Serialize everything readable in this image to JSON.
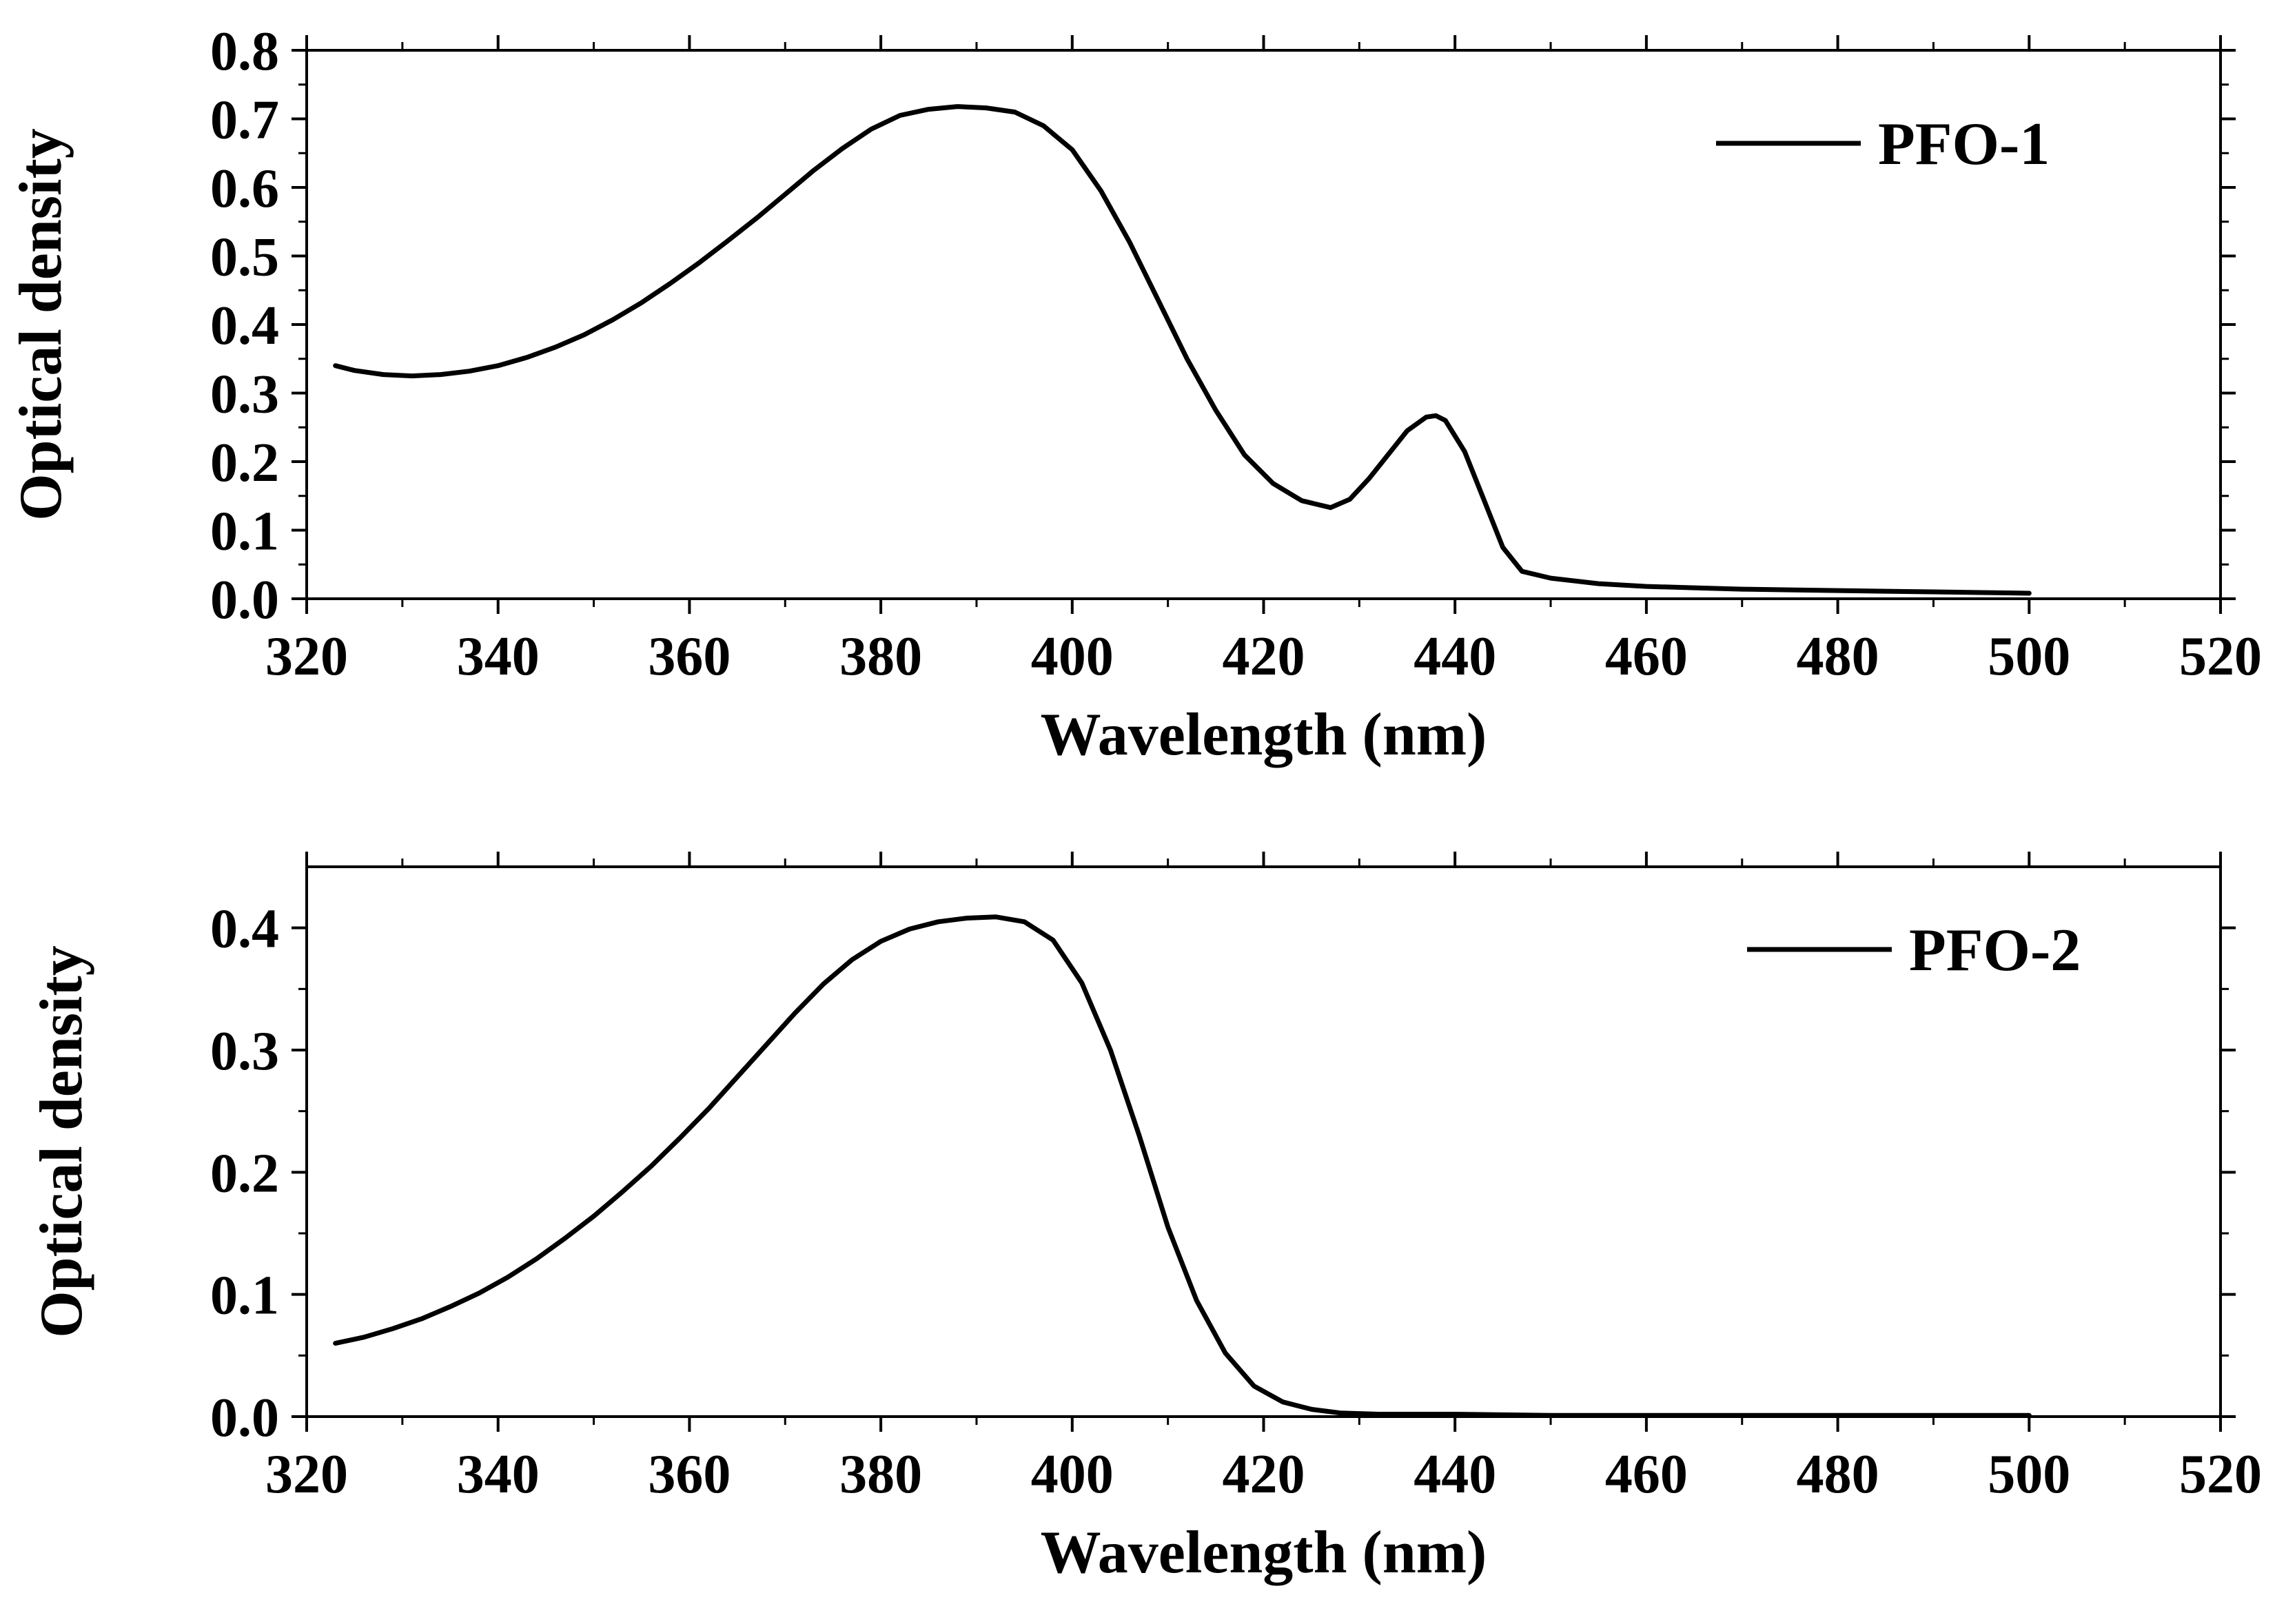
{
  "chart_data": [
    {
      "type": "line",
      "xlabel": "Wavelength (nm)",
      "ylabel": "Optical density",
      "xlim": [
        320,
        520
      ],
      "ylim": [
        0,
        0.8
      ],
      "xticks": [
        320,
        340,
        360,
        380,
        400,
        420,
        440,
        460,
        480,
        500,
        520
      ],
      "xtick_labels": [
        "320",
        "340",
        "360",
        "380",
        "400",
        "420",
        "440",
        "460",
        "480",
        "500",
        "520"
      ],
      "yticks": [
        0,
        0.1,
        0.2,
        0.3,
        0.4,
        0.5,
        0.6,
        0.7,
        0.8
      ],
      "ytick_labels": [
        "0.0",
        "0.1",
        "0.2",
        "0.3",
        "0.4",
        "0.5",
        "0.6",
        "0.7",
        "0.8"
      ],
      "legend_position": "top-right",
      "series": [
        {
          "name": "PFO-1",
          "x": [
            323,
            325,
            328,
            331,
            334,
            337,
            340,
            343,
            346,
            349,
            352,
            355,
            358,
            361,
            364,
            367,
            370,
            373,
            376,
            379,
            382,
            385,
            388,
            391,
            394,
            397,
            400,
            403,
            406,
            409,
            412,
            415,
            418,
            421,
            424,
            427,
            429,
            431,
            433,
            435,
            437,
            438,
            439,
            441,
            443,
            445,
            447,
            450,
            455,
            460,
            465,
            470,
            475,
            480,
            485,
            490,
            495,
            500
          ],
          "y": [
            0.34,
            0.333,
            0.327,
            0.325,
            0.327,
            0.332,
            0.34,
            0.352,
            0.367,
            0.385,
            0.407,
            0.432,
            0.46,
            0.49,
            0.522,
            0.555,
            0.59,
            0.625,
            0.657,
            0.685,
            0.705,
            0.714,
            0.718,
            0.716,
            0.71,
            0.69,
            0.655,
            0.595,
            0.52,
            0.435,
            0.35,
            0.275,
            0.21,
            0.168,
            0.143,
            0.133,
            0.145,
            0.175,
            0.21,
            0.245,
            0.265,
            0.267,
            0.26,
            0.215,
            0.145,
            0.075,
            0.04,
            0.03,
            0.022,
            0.018,
            0.016,
            0.014,
            0.013,
            0.012,
            0.011,
            0.01,
            0.009,
            0.008
          ]
        }
      ]
    },
    {
      "type": "line",
      "xlabel": "Wavelength (nm)",
      "ylabel": "Optical density",
      "xlim": [
        320,
        520
      ],
      "ylim": [
        0,
        0.45
      ],
      "xticks": [
        320,
        340,
        360,
        380,
        400,
        420,
        440,
        460,
        480,
        500,
        520
      ],
      "xtick_labels": [
        "320",
        "340",
        "360",
        "380",
        "400",
        "420",
        "440",
        "460",
        "480",
        "500",
        "520"
      ],
      "yticks": [
        0,
        0.1,
        0.2,
        0.3,
        0.4
      ],
      "ytick_labels": [
        "0.0",
        "0.1",
        "0.2",
        "0.3",
        "0.4"
      ],
      "legend_position": "top-right",
      "series": [
        {
          "name": "PFO-2",
          "x": [
            323,
            326,
            329,
            332,
            335,
            338,
            341,
            344,
            347,
            350,
            353,
            356,
            359,
            362,
            365,
            368,
            371,
            374,
            377,
            380,
            383,
            386,
            389,
            392,
            395,
            398,
            401,
            404,
            407,
            410,
            413,
            416,
            419,
            422,
            425,
            428,
            432,
            440,
            450,
            460,
            470,
            480,
            490,
            500
          ],
          "y": [
            0.06,
            0.065,
            0.072,
            0.08,
            0.09,
            0.101,
            0.114,
            0.129,
            0.146,
            0.164,
            0.184,
            0.205,
            0.228,
            0.252,
            0.278,
            0.304,
            0.33,
            0.354,
            0.374,
            0.389,
            0.399,
            0.405,
            0.408,
            0.409,
            0.405,
            0.39,
            0.355,
            0.3,
            0.23,
            0.155,
            0.095,
            0.052,
            0.025,
            0.012,
            0.006,
            0.003,
            0.002,
            0.002,
            0.001,
            0.001,
            0.001,
            0.001,
            0.001,
            0.001
          ]
        }
      ]
    }
  ]
}
